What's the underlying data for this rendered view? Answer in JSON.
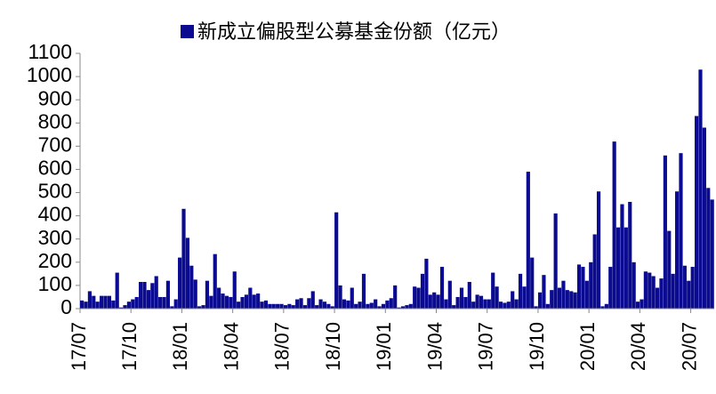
{
  "chart_data": {
    "type": "bar",
    "categories": [
      "17/07",
      null,
      null,
      null,
      null,
      null,
      null,
      null,
      null,
      null,
      null,
      null,
      null,
      "17/10",
      null,
      null,
      null,
      null,
      null,
      null,
      null,
      null,
      null,
      null,
      null,
      null,
      "18/01",
      null,
      null,
      null,
      null,
      null,
      null,
      null,
      null,
      null,
      null,
      null,
      null,
      "18/04",
      null,
      null,
      null,
      null,
      null,
      null,
      null,
      null,
      null,
      null,
      null,
      null,
      "18/07",
      null,
      null,
      null,
      null,
      null,
      null,
      null,
      null,
      null,
      null,
      null,
      null,
      "18/10",
      null,
      null,
      null,
      null,
      null,
      null,
      null,
      null,
      null,
      null,
      null,
      null,
      "19/01",
      null,
      null,
      null,
      null,
      null,
      null,
      null,
      null,
      null,
      null,
      null,
      null,
      "19/04",
      null,
      null,
      null,
      null,
      null,
      null,
      null,
      null,
      null,
      null,
      null,
      null,
      "19/07",
      null,
      null,
      null,
      null,
      null,
      null,
      null,
      null,
      null,
      null,
      null,
      null,
      "19/10",
      null,
      null,
      null,
      null,
      null,
      null,
      null,
      null,
      null,
      null,
      null,
      null,
      "20/01",
      null,
      null,
      null,
      null,
      null,
      null,
      null,
      null,
      null,
      null,
      null,
      null,
      "20/04",
      null,
      null,
      null,
      null,
      null,
      null,
      null,
      null,
      null,
      null,
      null,
      null,
      "20/07",
      null,
      null,
      null,
      null,
      null
    ],
    "series": [
      {
        "name": "新成立偏股型公募基金份额（亿元）",
        "color": "#0b0b92",
        "values": [
          35,
          30,
          75,
          55,
          30,
          55,
          55,
          55,
          35,
          155,
          5,
          15,
          30,
          40,
          50,
          115,
          115,
          80,
          110,
          140,
          50,
          50,
          120,
          10,
          40,
          220,
          430,
          305,
          185,
          125,
          10,
          15,
          120,
          55,
          235,
          90,
          65,
          55,
          50,
          160,
          30,
          50,
          60,
          90,
          60,
          65,
          30,
          35,
          20,
          20,
          20,
          20,
          15,
          20,
          15,
          40,
          45,
          15,
          45,
          75,
          15,
          40,
          30,
          20,
          10,
          415,
          100,
          40,
          35,
          90,
          20,
          30,
          150,
          20,
          25,
          40,
          10,
          20,
          35,
          45,
          100,
          5,
          10,
          15,
          20,
          95,
          90,
          150,
          215,
          60,
          70,
          60,
          180,
          40,
          120,
          15,
          50,
          90,
          50,
          115,
          30,
          60,
          55,
          40,
          40,
          155,
          95,
          30,
          25,
          30,
          75,
          40,
          150,
          95,
          590,
          220,
          10,
          70,
          145,
          20,
          80,
          410,
          90,
          120,
          80,
          75,
          70,
          190,
          180,
          120,
          200,
          320,
          505,
          10,
          20,
          180,
          720,
          350,
          450,
          350,
          460,
          200,
          30,
          40,
          160,
          155,
          140,
          90,
          130,
          660,
          335,
          150,
          505,
          670,
          185,
          120,
          180,
          830,
          1030,
          780,
          520,
          470
        ]
      }
    ],
    "ylim": [
      0,
      1100
    ],
    "yticks": [
      0,
      100,
      200,
      300,
      400,
      500,
      600,
      700,
      800,
      900,
      1000,
      1100
    ],
    "grid": false,
    "legend": "top"
  }
}
